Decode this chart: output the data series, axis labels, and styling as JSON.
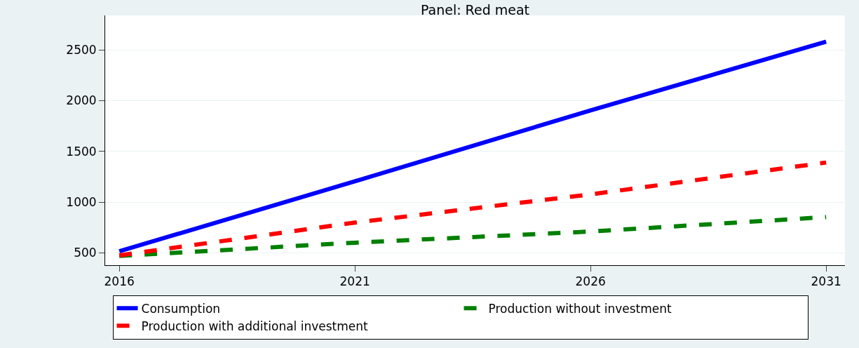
{
  "chart_data": {
    "type": "line",
    "title": "Panel: Red meat",
    "x": [
      2016,
      2021,
      2026,
      2031
    ],
    "series": [
      {
        "name": "Consumption",
        "color": "#0000ff",
        "values": [
          515,
          1205,
          1903,
          2581
        ],
        "line_style": "solid"
      },
      {
        "name": "Production without investment",
        "color": "#008000",
        "values": [
          470,
          600,
          710,
          852
        ],
        "line_style": "dashed"
      },
      {
        "name": "Production with additional investment",
        "color": "#ff0000",
        "values": [
          475,
          798,
          1076,
          1390
        ],
        "line_style": "dashed"
      }
    ],
    "xlim": [
      2015.7,
      2031.4
    ],
    "xticks": [
      2016,
      2021,
      2026,
      2031
    ],
    "ylim": [
      378,
      2839
    ],
    "yticks": [
      500,
      1000,
      1500,
      2000,
      2500
    ],
    "grid": "y",
    "legend": "bottom",
    "marker": "none"
  }
}
